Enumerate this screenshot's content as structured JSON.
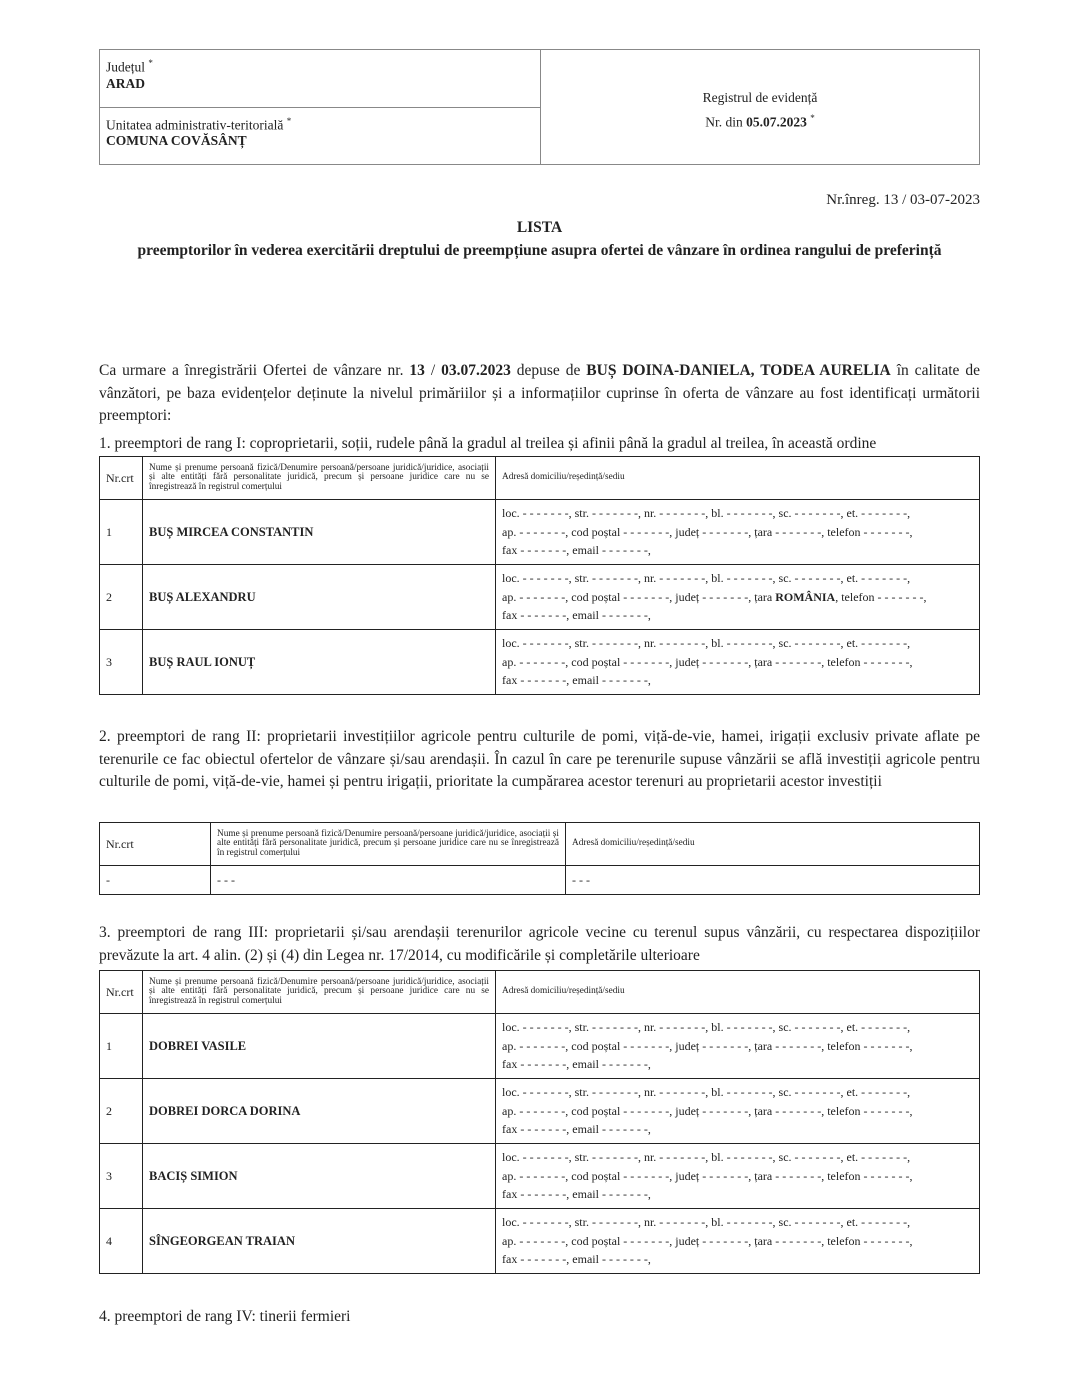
{
  "header": {
    "county_label": "Județul",
    "county": "ARAD",
    "uat_label": "Unitatea administrativ-teritorială",
    "uat": "COMUNA COVĂSÂNȚ",
    "register_label": "Registrul de evidență",
    "nr_label": "Nr. din",
    "date": "05.07.2023",
    "required_mark": "*"
  },
  "reg_no": "Nr.înreg. 13 / 03-07-2023",
  "title": "LISTA",
  "subtitle": "preemptorilor în vederea exercitării dreptului de preempțiune asupra ofertei de vânzare în ordinea rangului de preferință",
  "intro": {
    "t1": "Ca urmare a înregistrării Ofertei de vânzare nr. ",
    "nr": "13",
    "t2": " / ",
    "date": "03.07.2023",
    "t3": " depuse de ",
    "sellers": "BUȘ DOINA-DANIELA, TODEA AURELIA",
    "t4": " în calitate de vânzători, pe baza evidențelor deținute la nivelul primăriilor și a informațiilor cuprinse în oferta de vânzare au fost identificați următorii preemptori:"
  },
  "rank1": "1. preemptori de rang I: coproprietarii, soții, rudele până la gradul al treilea și afinii până la gradul al treilea, în această ordine",
  "rank2": "2. preemptori de rang II: proprietarii investițiilor agricole pentru culturile de pomi, viță-de-vie, hamei, irigații exclusiv private aflate pe terenurile ce fac obiectul ofertelor de vânzare și/sau arendașii. În cazul în care pe terenurile supuse vânzării se află investiții agricole pentru culturile de pomi, viță-de-vie, hamei și pentru irigații, prioritate la cumpărarea acestor terenuri au proprietarii acestor investiții",
  "rank3": "3. preemptori de rang III: proprietarii și/sau arendașii terenurilor agricole vecine cu terenul supus vânzării, cu respectarea dispozițiilor prevăzute la art. 4 alin. (2) și (4) din Legea nr. 17/2014, cu modificările și completările ulterioare",
  "rank4": "4. preemptori de rang IV: tinerii fermieri",
  "columns": {
    "nr": "Nr.crt",
    "name": "Nume și prenume persoană fizică/Denumire persoană/persoane juridică/juridice, asociații și alte entități fără personalitate juridică, precum și persoane juridice care nu se înregistrează în registrul comerțului",
    "address": "Adresă domiciliu/reședință/sediu"
  },
  "address_template": {
    "l1": "loc. - - - - - - -, str. - - - - - - -, nr. - - - - - - -, bl. - - - - - - -, sc. - - - - - - -, et. - - - - - - -,",
    "l2a": "ap. - - - - - - -, cod poștal - - - - - - -, județ - - - - - - -, țara ",
    "l2b": ", telefon - - - - - - -,",
    "l3": "fax - - - - - - -, email - - - - - - -,",
    "country_empty": "- - - - - - -"
  },
  "table1": [
    {
      "nr": "1",
      "name": "BUȘ MIRCEA CONSTANTIN",
      "country": ""
    },
    {
      "nr": "2",
      "name": "BUȘ ALEXANDRU",
      "country": "ROMÂNIA"
    },
    {
      "nr": "3",
      "name": "BUȘ RAUL IONUȚ",
      "country": ""
    }
  ],
  "table2": [
    {
      "nr": "-",
      "name": "- - -",
      "address": "- - -"
    }
  ],
  "table3": [
    {
      "nr": "1",
      "name": "DOBREI VASILE",
      "country": ""
    },
    {
      "nr": "2",
      "name": "DOBREI DORCA DORINA",
      "country": ""
    },
    {
      "nr": "3",
      "name": "BACIȘ SIMION",
      "country": ""
    },
    {
      "nr": "4",
      "name": "SÎNGEORGEAN TRAIAN",
      "country": ""
    }
  ]
}
